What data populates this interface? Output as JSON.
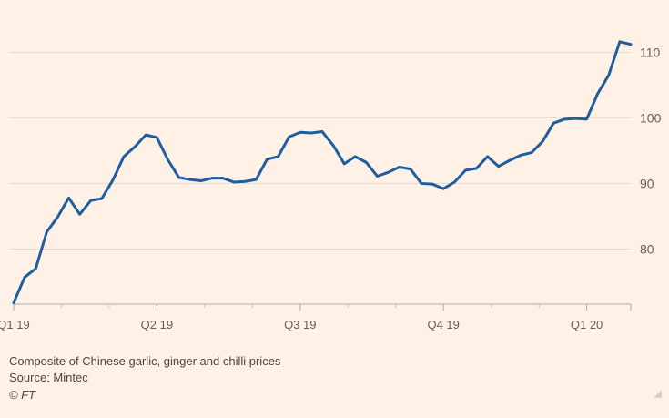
{
  "chart_data": {
    "type": "line",
    "title": "",
    "xlabel": "",
    "ylabel": "",
    "ylim": [
      71.6,
      115.6
    ],
    "yticks": [
      80,
      90,
      100,
      110
    ],
    "x_ticks": [
      "Q1 19",
      "Q2 19",
      "Q3 19",
      "Q4 19",
      "Q1 20"
    ],
    "grid": true,
    "line_color": "#1f5e9e",
    "series": [
      {
        "values": [
          71.8,
          75.7,
          77.0,
          82.6,
          84.9,
          87.8,
          85.3,
          87.4,
          87.7,
          90.5,
          94.1,
          95.6,
          97.4,
          97.0,
          93.6,
          90.9,
          90.6,
          90.4,
          90.8,
          90.8,
          90.2,
          90.3,
          90.6,
          93.7,
          94.1,
          97.1,
          97.8,
          97.7,
          97.9,
          95.8,
          93.0,
          94.1,
          93.2,
          91.1,
          91.7,
          92.5,
          92.2,
          90.0,
          89.9,
          89.2,
          90.2,
          92.0,
          92.3,
          94.1,
          92.6,
          93.5,
          94.3,
          94.7,
          96.4,
          99.2,
          99.8,
          99.9,
          99.8,
          103.7,
          106.5,
          111.6,
          111.2
        ]
      }
    ]
  },
  "footer": {
    "note": "Composite of Chinese garlic, ginger and chilli prices",
    "source": "Source: Mintec",
    "credit": "© FT"
  },
  "colors": {
    "background": "#fff1e5",
    "line": "#1f5e9e",
    "grid": "#e6d9ce"
  }
}
